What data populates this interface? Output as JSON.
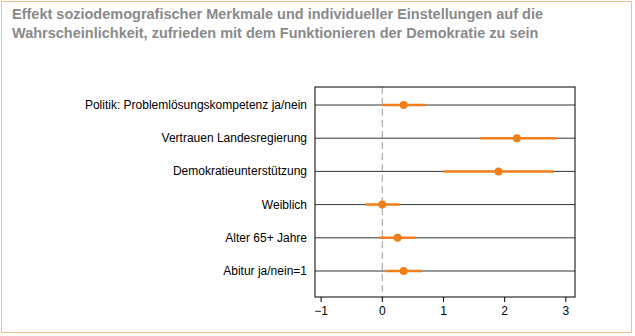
{
  "chart_data": {
    "type": "scatter",
    "orientation": "horizontal",
    "title": "Effekt soziodemografischer Merkmale und individueller Einstellungen auf die\nWahrscheinlichkeit, zufrieden mit dem Funktionieren der Demokratie zu sein",
    "categories": [
      "Politik: Problemlösungskompetenz ja/nein",
      "Vertrauen Landesregierung",
      "Demokratieunterstützung",
      "Weiblich",
      "Alter 65+ Jahre",
      "Abitur ja/nein=1"
    ],
    "values": [
      0.35,
      2.2,
      1.9,
      0.0,
      0.25,
      0.35
    ],
    "ci_low": [
      0.0,
      1.6,
      1.0,
      -0.28,
      -0.05,
      0.05
    ],
    "ci_high": [
      0.7,
      2.85,
      2.8,
      0.28,
      0.55,
      0.65
    ],
    "color": "#f07f1a",
    "marker": "circle",
    "grid": true,
    "reference_x": 0,
    "xlim": [
      -1.1,
      3.15
    ],
    "xticks": [
      -1,
      0,
      1,
      2,
      3
    ]
  }
}
